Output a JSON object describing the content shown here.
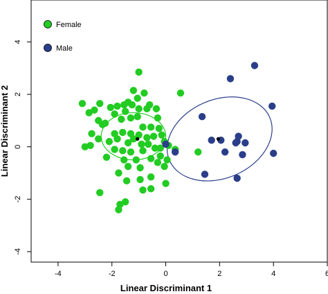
{
  "chart_data": {
    "type": "scatter",
    "xlabel": "Linear Discriminant 1",
    "ylabel": "Linear Discriminant 2",
    "xlim": [
      -5.0,
      6.0
    ],
    "ylim": [
      -4.4,
      5.6
    ],
    "xticks": [
      "-4",
      "-2",
      "0",
      "2",
      "4",
      "6"
    ],
    "yticks": [
      "-4",
      "-2",
      "0",
      "2",
      "4"
    ],
    "grid": false,
    "legend_position": "top-left",
    "series": [
      {
        "name": "Female",
        "color": "#22cc22",
        "points": [
          [
            -1.0,
            2.85
          ],
          [
            0.55,
            2.05
          ],
          [
            -1.2,
            2.15
          ],
          [
            -0.8,
            2.05
          ],
          [
            -1.05,
            1.85
          ],
          [
            -1.4,
            1.7
          ],
          [
            -2.45,
            1.65
          ],
          [
            -2.05,
            1.5
          ],
          [
            -1.8,
            1.55
          ],
          [
            -1.55,
            1.6
          ],
          [
            -1.25,
            1.6
          ],
          [
            -0.6,
            1.6
          ],
          [
            -1.0,
            1.45
          ],
          [
            -0.7,
            1.45
          ],
          [
            -0.35,
            1.45
          ],
          [
            -1.5,
            1.35
          ],
          [
            -3.1,
            1.65
          ],
          [
            -2.85,
            1.3
          ],
          [
            -2.65,
            1.4
          ],
          [
            -2.5,
            1.0
          ],
          [
            -2.35,
            0.85
          ],
          [
            -2.25,
            0.9
          ],
          [
            -1.9,
            1.25
          ],
          [
            -1.65,
            1.05
          ],
          [
            -1.3,
            1.1
          ],
          [
            -1.05,
            1.15
          ],
          [
            -0.85,
            0.75
          ],
          [
            -0.55,
            0.75
          ],
          [
            -0.3,
            1.1
          ],
          [
            -0.25,
            0.7
          ],
          [
            -1.9,
            0.5
          ],
          [
            -1.6,
            0.55
          ],
          [
            -1.3,
            0.5
          ],
          [
            -1.0,
            0.45
          ],
          [
            -0.7,
            0.35
          ],
          [
            -0.45,
            0.4
          ],
          [
            -0.15,
            0.45
          ],
          [
            -0.05,
            0.2
          ],
          [
            -2.75,
            0.5
          ],
          [
            -2.5,
            0.3
          ],
          [
            -2.8,
            0.05
          ],
          [
            -3.0,
            0.0
          ],
          [
            -2.1,
            0.2
          ],
          [
            -1.8,
            0.3
          ],
          [
            -1.4,
            0.15
          ],
          [
            -1.2,
            0.3
          ],
          [
            -0.9,
            0.1
          ],
          [
            -0.65,
            0.1
          ],
          [
            -0.4,
            -0.05
          ],
          [
            -0.2,
            -0.05
          ],
          [
            0.1,
            0.05
          ],
          [
            0.35,
            -0.1
          ],
          [
            -1.9,
            -0.1
          ],
          [
            -1.6,
            -0.15
          ],
          [
            -1.3,
            -0.2
          ],
          [
            -0.85,
            -0.15
          ],
          [
            -2.2,
            -0.4
          ],
          [
            -1.55,
            -0.5
          ],
          [
            -1.1,
            -0.5
          ],
          [
            -0.55,
            -0.45
          ],
          [
            -0.2,
            -0.35
          ],
          [
            0.05,
            -0.5
          ],
          [
            -0.3,
            -0.6
          ],
          [
            -0.05,
            -0.75
          ],
          [
            -1.4,
            -0.75
          ],
          [
            -0.95,
            -0.8
          ],
          [
            -0.55,
            -1.15
          ],
          [
            -1.75,
            -1.0
          ],
          [
            -1.45,
            -1.3
          ],
          [
            -0.95,
            -1.25
          ],
          [
            -0.85,
            -1.65
          ],
          [
            0.0,
            -1.4
          ],
          [
            -0.55,
            -1.6
          ],
          [
            -2.45,
            -1.75
          ],
          [
            -1.7,
            -2.2
          ],
          [
            -1.5,
            -2.1
          ],
          [
            -1.75,
            -2.4
          ],
          [
            1.2,
            -0.2
          ]
        ]
      },
      {
        "name": "Male",
        "color": "#2a3e8a",
        "points": [
          [
            3.3,
            3.1
          ],
          [
            2.4,
            2.6
          ],
          [
            3.95,
            1.55
          ],
          [
            1.35,
            1.15
          ],
          [
            2.7,
            0.4
          ],
          [
            1.7,
            0.25
          ],
          [
            2.05,
            0.25
          ],
          [
            2.6,
            0.15
          ],
          [
            2.95,
            0.15
          ],
          [
            0.0,
            0.1
          ],
          [
            2.2,
            -0.2
          ],
          [
            0.35,
            -0.2
          ],
          [
            2.85,
            -0.3
          ],
          [
            4.0,
            -0.25
          ],
          [
            1.45,
            -1.05
          ],
          [
            2.65,
            -1.2
          ],
          [
            2.65,
            0.2
          ]
        ]
      }
    ],
    "ellipses": [
      {
        "series": "Female",
        "center": [
          -1.2,
          0.4
        ],
        "radius_x": 2.4,
        "radius_y": 1.8,
        "rotation_deg": 0
      },
      {
        "series": "Male",
        "center": [
          2.0,
          0.3
        ],
        "radius_x": 4.05,
        "radius_y": 3.0,
        "rotation_deg": -23
      }
    ],
    "centroids": [
      {
        "series": "Female",
        "x": -1.05,
        "y": 0.3
      },
      {
        "series": "Male",
        "x": 1.95,
        "y": 0.3
      }
    ]
  }
}
